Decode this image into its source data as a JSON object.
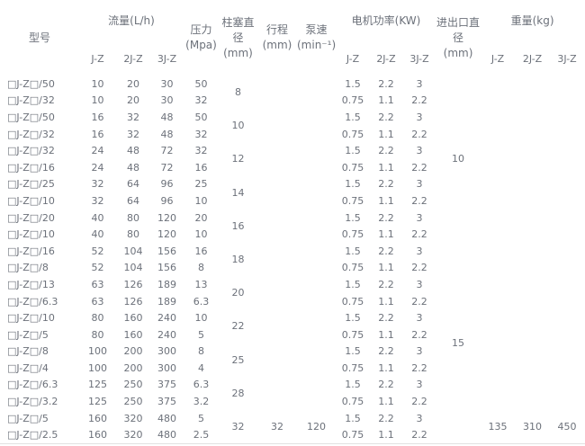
{
  "table": {
    "headers": {
      "model": "型号",
      "flow_group": "流量(L/h)",
      "pressure": "压力\n(Mpa)",
      "plunger": "柱塞直径\n(mm)",
      "stroke": "行程\n(mm)",
      "speed": "泵速\n(min⁻¹)",
      "power_group": "电机功率(KW)",
      "inlet": "进出口直\n径\n(mm)",
      "weight_group": "重量(kg)",
      "sub_jz": "J-Z",
      "sub_2jz": "2J-Z",
      "sub_3jz": "3J-Z"
    },
    "rows": [
      {
        "model": "□J-Z□/50",
        "f1": "10",
        "f2": "20",
        "f3": "30",
        "p": "50",
        "m1": "1.5",
        "m2": "2.2",
        "m3": "3"
      },
      {
        "model": "□J-Z□/32",
        "f1": "10",
        "f2": "20",
        "f3": "30",
        "p": "32",
        "m1": "0.75",
        "m2": "1.1",
        "m3": "2.2"
      },
      {
        "model": "□J-Z□/50",
        "f1": "16",
        "f2": "32",
        "f3": "48",
        "p": "50",
        "m1": "1.5",
        "m2": "2.2",
        "m3": "3"
      },
      {
        "model": "□J-Z□/32",
        "f1": "16",
        "f2": "32",
        "f3": "48",
        "p": "32",
        "m1": "0.75",
        "m2": "1.1",
        "m3": "2.2"
      },
      {
        "model": "□J-Z□/32",
        "f1": "24",
        "f2": "48",
        "f3": "72",
        "p": "32",
        "m1": "1.5",
        "m2": "2.2",
        "m3": "3"
      },
      {
        "model": "□J-Z□/16",
        "f1": "24",
        "f2": "48",
        "f3": "72",
        "p": "16",
        "m1": "0.75",
        "m2": "1.1",
        "m3": "2.2"
      },
      {
        "model": "□J-Z□/25",
        "f1": "32",
        "f2": "64",
        "f3": "96",
        "p": "25",
        "m1": "1.5",
        "m2": "2.2",
        "m3": "3"
      },
      {
        "model": "□J-Z□/10",
        "f1": "32",
        "f2": "64",
        "f3": "96",
        "p": "10",
        "m1": "0.75",
        "m2": "1.1",
        "m3": "2.2"
      },
      {
        "model": "□J-Z□/20",
        "f1": "40",
        "f2": "80",
        "f3": "120",
        "p": "20",
        "m1": "1.5",
        "m2": "2.2",
        "m3": "3"
      },
      {
        "model": "□J-Z□/10",
        "f1": "40",
        "f2": "80",
        "f3": "120",
        "p": "10",
        "m1": "0.75",
        "m2": "1.1",
        "m3": "2.2"
      },
      {
        "model": "□J-Z□/16",
        "f1": "52",
        "f2": "104",
        "f3": "156",
        "p": "16",
        "m1": "1.5",
        "m2": "2.2",
        "m3": "3"
      },
      {
        "model": "□J-Z□/8",
        "f1": "52",
        "f2": "104",
        "f3": "156",
        "p": "8",
        "m1": "0.75",
        "m2": "1.1",
        "m3": "2.2"
      },
      {
        "model": "□J-Z□/13",
        "f1": "63",
        "f2": "126",
        "f3": "189",
        "p": "13",
        "m1": "1.5",
        "m2": "2.2",
        "m3": "3"
      },
      {
        "model": "□J-Z□/6.3",
        "f1": "63",
        "f2": "126",
        "f3": "189",
        "p": "6.3",
        "m1": "0.75",
        "m2": "1.1",
        "m3": "2.2"
      },
      {
        "model": "□J-Z□/10",
        "f1": "80",
        "f2": "160",
        "f3": "240",
        "p": "10",
        "m1": "1.5",
        "m2": "2.2",
        "m3": "3"
      },
      {
        "model": "□J-Z□/5",
        "f1": "80",
        "f2": "160",
        "f3": "240",
        "p": "5",
        "m1": "0.75",
        "m2": "1.1",
        "m3": "2.2"
      },
      {
        "model": "□J-Z□/8",
        "f1": "100",
        "f2": "200",
        "f3": "300",
        "p": "8",
        "m1": "1.5",
        "m2": "2.2",
        "m3": "3"
      },
      {
        "model": "□J-Z□/4",
        "f1": "100",
        "f2": "200",
        "f3": "300",
        "p": "4",
        "m1": "0.75",
        "m2": "1.1",
        "m3": "2.2"
      },
      {
        "model": "□J-Z□/6.3",
        "f1": "125",
        "f2": "250",
        "f3": "375",
        "p": "6.3",
        "m1": "1.5",
        "m2": "2.2",
        "m3": "3"
      },
      {
        "model": "□J-Z□/3.2",
        "f1": "125",
        "f2": "250",
        "f3": "375",
        "p": "3.2",
        "m1": "0.75",
        "m2": "1.1",
        "m3": "2.2"
      },
      {
        "model": "□J-Z□/5",
        "f1": "160",
        "f2": "320",
        "f3": "480",
        "p": "5",
        "m1": "1.5",
        "m2": "2.2",
        "m3": "3"
      },
      {
        "model": "□J-Z□/2.5",
        "f1": "160",
        "f2": "320",
        "f3": "480",
        "p": "2.5",
        "m1": "0.75",
        "m2": "1.1",
        "m3": "2.2"
      }
    ],
    "plunger": [
      "8",
      "10",
      "12",
      "14",
      "16",
      "18",
      "20",
      "22",
      "25",
      "28",
      "32"
    ],
    "stroke": "32",
    "speed": "120",
    "inlet": [
      {
        "value": "10",
        "span": 10
      },
      {
        "value": "15",
        "span": 12
      }
    ],
    "weights": [
      "135",
      "310",
      "450"
    ]
  }
}
